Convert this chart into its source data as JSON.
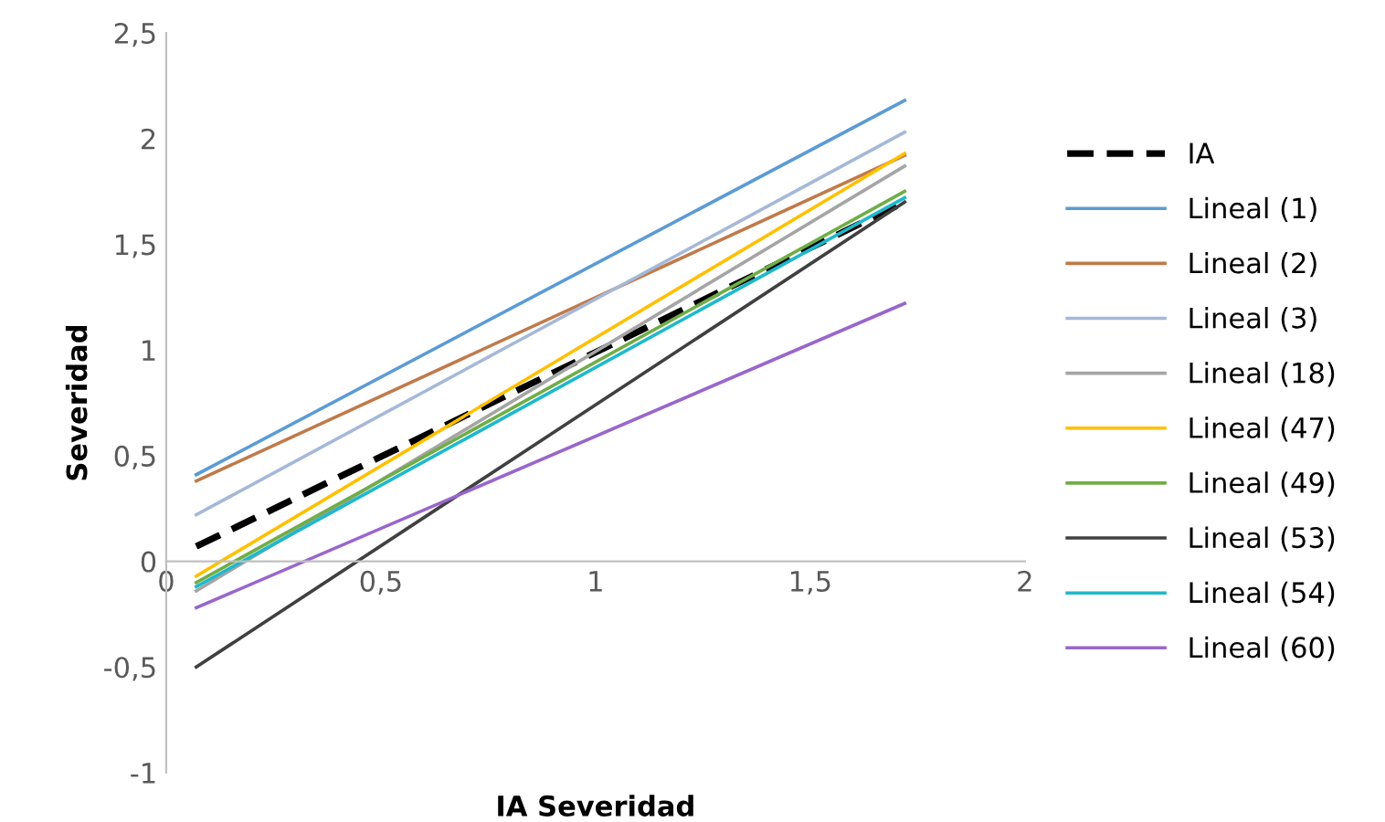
{
  "chart_data": {
    "type": "line",
    "xlabel": "IA Severidad",
    "ylabel": "Severidad",
    "xlim": [
      0,
      2
    ],
    "ylim": [
      -1,
      2.5
    ],
    "xticks": [
      0,
      {
        "value": 0.5,
        "label": "0,5"
      },
      1,
      {
        "value": 1.5,
        "label": "1,5"
      },
      2
    ],
    "yticks": [
      -1,
      {
        "value": -0.5,
        "label": "-0,5"
      },
      0,
      {
        "value": 0.5,
        "label": "0,5"
      },
      1,
      {
        "value": 1.5,
        "label": "1,5"
      },
      2,
      {
        "value": 2.5,
        "label": "2,5"
      }
    ],
    "grid": false,
    "legend": "right",
    "marker": "none",
    "x": [
      0.07,
      1.72
    ],
    "series": [
      {
        "name": "IA",
        "color": "#000000",
        "line_style": "dashed",
        "values": [
          0.07,
          1.7
        ]
      },
      {
        "name": "Lineal (1)",
        "color": "#5b9bd5",
        "values": [
          0.41,
          2.18
        ]
      },
      {
        "name": "Lineal (2)",
        "color": "#c07a4a",
        "values": [
          0.38,
          1.92
        ]
      },
      {
        "name": "Lineal (3)",
        "color": "#a5b8d8",
        "values": [
          0.22,
          2.03
        ]
      },
      {
        "name": "Lineal (18)",
        "color": "#a5a5a5",
        "values": [
          -0.14,
          1.87
        ]
      },
      {
        "name": "Lineal (47)",
        "color": "#ffc000",
        "values": [
          -0.07,
          1.93
        ]
      },
      {
        "name": "Lineal (49)",
        "color": "#70ad47",
        "values": [
          -0.1,
          1.75
        ]
      },
      {
        "name": "Lineal (53)",
        "color": "#404040",
        "values": [
          -0.5,
          1.7
        ]
      },
      {
        "name": "Lineal (54)",
        "color": "#1fb8cc",
        "values": [
          -0.12,
          1.72
        ]
      },
      {
        "name": "Lineal (60)",
        "color": "#9966cc",
        "values": [
          -0.22,
          1.22
        ]
      }
    ]
  }
}
